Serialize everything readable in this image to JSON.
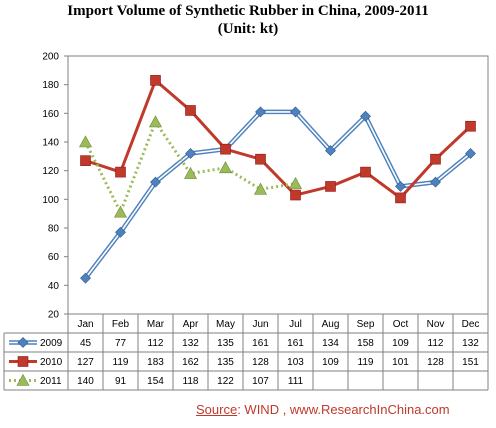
{
  "chart_data": {
    "type": "line",
    "title": "Import Volume of Synthetic Rubber in China, 2009-2011",
    "subtitle": "(Unit: kt)",
    "categories": [
      "Jan",
      "Feb",
      "Mar",
      "Apr",
      "May",
      "Jun",
      "Jul",
      "Aug",
      "Sep",
      "Oct",
      "Nov",
      "Dec"
    ],
    "ylim": [
      20,
      200
    ],
    "yticks": [
      20,
      40,
      60,
      80,
      100,
      120,
      140,
      160,
      180,
      200
    ],
    "grid": false,
    "legend": "data-table",
    "series": [
      {
        "name": "2009",
        "values": [
          45,
          77,
          112,
          132,
          135,
          161,
          161,
          134,
          158,
          109,
          112,
          132
        ],
        "color": "#4f81bd",
        "marker": "diamond",
        "style": "double"
      },
      {
        "name": "2010",
        "values": [
          127,
          119,
          183,
          162,
          135,
          128,
          103,
          109,
          119,
          101,
          128,
          151
        ],
        "color": "#c0392b",
        "marker": "square",
        "style": "solid"
      },
      {
        "name": "2011",
        "values": [
          140,
          91,
          154,
          118,
          122,
          107,
          111,
          null,
          null,
          null,
          null,
          null
        ],
        "color": "#9bbb59",
        "marker": "triangle",
        "style": "dotted"
      }
    ]
  },
  "source": {
    "prefix": "Source",
    "text": ": WIND , www.ResearchInChina.com"
  }
}
